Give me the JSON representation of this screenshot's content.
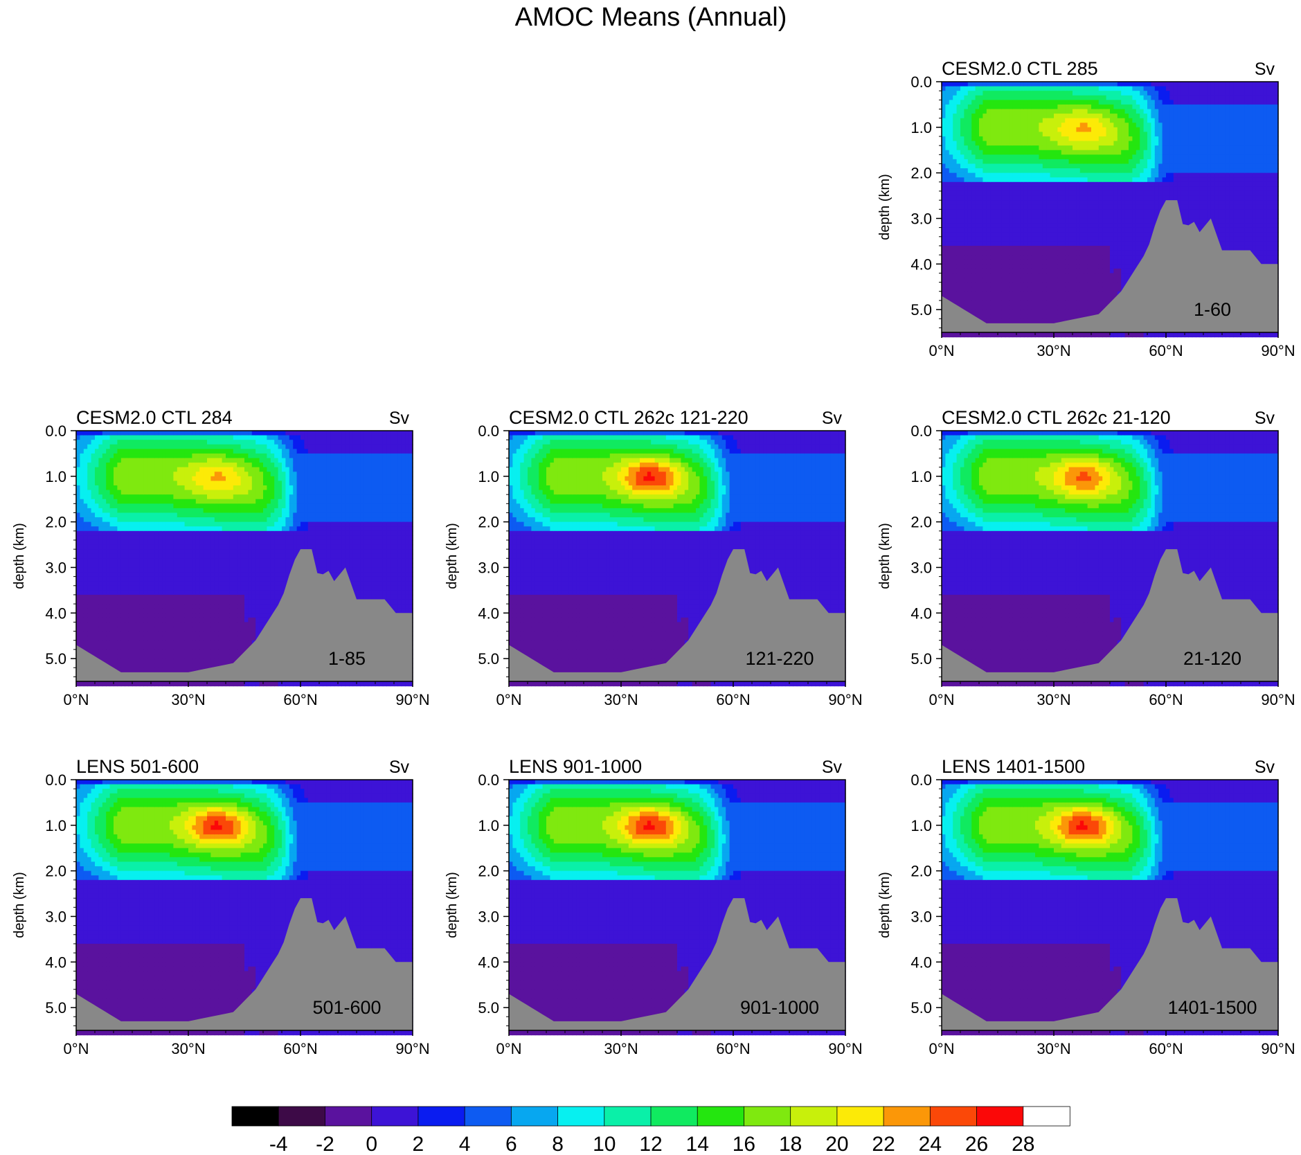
{
  "figure": {
    "title": "AMOC Means (Annual)"
  },
  "panel_defaults": {
    "unit": "Sv",
    "ylabel": "depth (km)",
    "y_ticks": [
      "0.0",
      "1.0",
      "2.0",
      "3.0",
      "4.0",
      "5.0"
    ],
    "x_ticks": [
      "0°N",
      "30°N",
      "60°N",
      "90°N"
    ]
  },
  "chart_data": [
    {
      "type": "heatmap",
      "title": "CESM2.0 CTL 285",
      "unit": "Sv",
      "ylabel": "depth (km)",
      "period": "1-60",
      "xlim": [
        0,
        90
      ],
      "ylim": [
        5.5,
        0.0
      ],
      "peak_sv": 22,
      "x_ticks": [
        "0°N",
        "30°N",
        "60°N",
        "90°N"
      ],
      "y_ticks": [
        "0.0",
        "1.0",
        "2.0",
        "3.0",
        "4.0",
        "5.0"
      ]
    },
    {
      "type": "heatmap",
      "title": "CESM2.0 CTL 284",
      "unit": "Sv",
      "ylabel": "depth (km)",
      "period": "1-85",
      "xlim": [
        0,
        90
      ],
      "ylim": [
        5.5,
        0.0
      ],
      "peak_sv": 22,
      "x_ticks": [
        "0°N",
        "30°N",
        "60°N",
        "90°N"
      ],
      "y_ticks": [
        "0.0",
        "1.0",
        "2.0",
        "3.0",
        "4.0",
        "5.0"
      ]
    },
    {
      "type": "heatmap",
      "title": "CESM2.0 CTL 262c 121-220",
      "unit": "Sv",
      "ylabel": "depth (km)",
      "period": "121-220",
      "xlim": [
        0,
        90
      ],
      "ylim": [
        5.5,
        0.0
      ],
      "peak_sv": 26,
      "x_ticks": [
        "0°N",
        "30°N",
        "60°N",
        "90°N"
      ],
      "y_ticks": [
        "0.0",
        "1.0",
        "2.0",
        "3.0",
        "4.0",
        "5.0"
      ]
    },
    {
      "type": "heatmap",
      "title": "CESM2.0 CTL 262c 21-120",
      "unit": "Sv",
      "ylabel": "depth (km)",
      "period": "21-120",
      "xlim": [
        0,
        90
      ],
      "ylim": [
        5.5,
        0.0
      ],
      "peak_sv": 24,
      "x_ticks": [
        "0°N",
        "30°N",
        "60°N",
        "90°N"
      ],
      "y_ticks": [
        "0.0",
        "1.0",
        "2.0",
        "3.0",
        "4.0",
        "5.0"
      ]
    },
    {
      "type": "heatmap",
      "title": "LENS 501-600",
      "unit": "Sv",
      "ylabel": "depth (km)",
      "period": "501-600",
      "xlim": [
        0,
        90
      ],
      "ylim": [
        5.5,
        0.0
      ],
      "peak_sv": 26,
      "x_ticks": [
        "0°N",
        "30°N",
        "60°N",
        "90°N"
      ],
      "y_ticks": [
        "0.0",
        "1.0",
        "2.0",
        "3.0",
        "4.0",
        "5.0"
      ]
    },
    {
      "type": "heatmap",
      "title": "LENS 901-1000",
      "unit": "Sv",
      "ylabel": "depth (km)",
      "period": "901-1000",
      "xlim": [
        0,
        90
      ],
      "ylim": [
        5.5,
        0.0
      ],
      "peak_sv": 26,
      "x_ticks": [
        "0°N",
        "30°N",
        "60°N",
        "90°N"
      ],
      "y_ticks": [
        "0.0",
        "1.0",
        "2.0",
        "3.0",
        "4.0",
        "5.0"
      ]
    },
    {
      "type": "heatmap",
      "title": "LENS 1401-1500",
      "unit": "Sv",
      "ylabel": "depth (km)",
      "period": "1401-1500",
      "xlim": [
        0,
        90
      ],
      "ylim": [
        5.5,
        0.0
      ],
      "peak_sv": 26,
      "x_ticks": [
        "0°N",
        "30°N",
        "60°N",
        "90°N"
      ],
      "y_ticks": [
        "0.0",
        "1.0",
        "2.0",
        "3.0",
        "4.0",
        "5.0"
      ]
    }
  ],
  "colorbar": {
    "labels": [
      "-4",
      "-2",
      "0",
      "2",
      "4",
      "6",
      "8",
      "10",
      "12",
      "14",
      "16",
      "18",
      "20",
      "22",
      "24",
      "26",
      "28"
    ],
    "colors": [
      "#000000",
      "#3d0a47",
      "#5a129e",
      "#3d13d6",
      "#0a1cf0",
      "#0d5bf2",
      "#07a7f0",
      "#07f0f0",
      "#0af0a8",
      "#10ea60",
      "#24e60f",
      "#7fe90f",
      "#c8f00b",
      "#fcea07",
      "#fb9708",
      "#fb4808",
      "#fb0808",
      "#ffffff"
    ],
    "land_color": "#888888"
  }
}
